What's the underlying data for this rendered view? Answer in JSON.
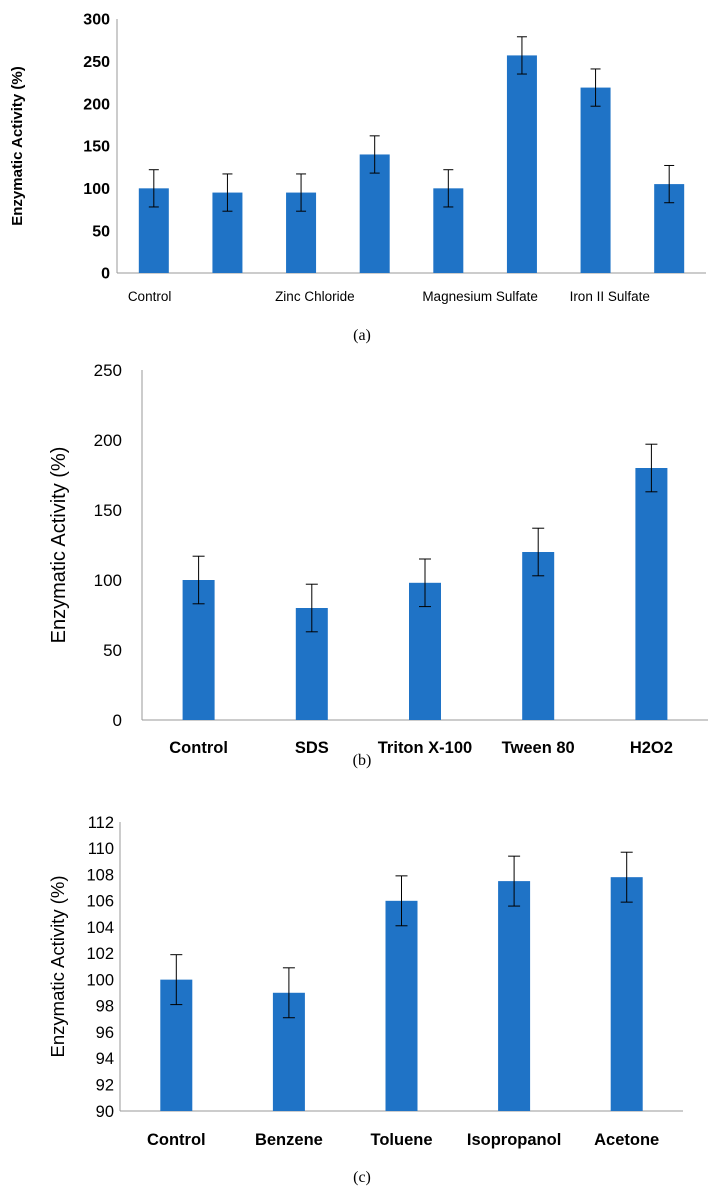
{
  "colors": {
    "bar": "#1f73c6",
    "axis": "#999999",
    "text": "#000000"
  },
  "chart_data": [
    {
      "type": "bar",
      "caption": "(a)",
      "title": "",
      "xlabel": "",
      "ylabel": "Enzymatic Activity (%)",
      "ylim": [
        0,
        300
      ],
      "yticks": [
        0,
        50,
        100,
        150,
        200,
        250,
        300
      ],
      "grid": false,
      "categories": [
        "Control",
        "",
        "Zinc Chloride",
        "",
        "Magnesium Sulfate",
        "",
        "Iron II Sulfate",
        ""
      ],
      "values": [
        100,
        95,
        95,
        140,
        100,
        257,
        219,
        105
      ],
      "errors": [
        22,
        22,
        22,
        22,
        22,
        22,
        22,
        22
      ]
    },
    {
      "type": "bar",
      "caption": "(b)",
      "title": "",
      "xlabel": "",
      "ylabel": "Enzymatic Activity (%)",
      "ylim": [
        0,
        250
      ],
      "yticks": [
        0,
        50,
        100,
        150,
        200,
        250
      ],
      "grid": false,
      "categories": [
        "Control",
        "SDS",
        "Triton X-100",
        "Tween 80",
        "H2O2"
      ],
      "values": [
        100,
        80,
        98,
        120,
        180
      ],
      "errors": [
        17,
        17,
        17,
        17,
        17
      ]
    },
    {
      "type": "bar",
      "caption": "(c)",
      "title": "",
      "xlabel": "",
      "ylabel": "Enzymatic Activity (%)",
      "ylim": [
        90,
        112
      ],
      "yticks": [
        90,
        92,
        94,
        96,
        98,
        100,
        102,
        104,
        106,
        108,
        110,
        112
      ],
      "grid": false,
      "categories": [
        "Control",
        "Benzene",
        "Toluene",
        "Isopropanol",
        "Acetone"
      ],
      "values": [
        100,
        99,
        106,
        107.5,
        107.8
      ],
      "errors": [
        1.9,
        1.9,
        1.9,
        1.9,
        1.9
      ]
    }
  ]
}
